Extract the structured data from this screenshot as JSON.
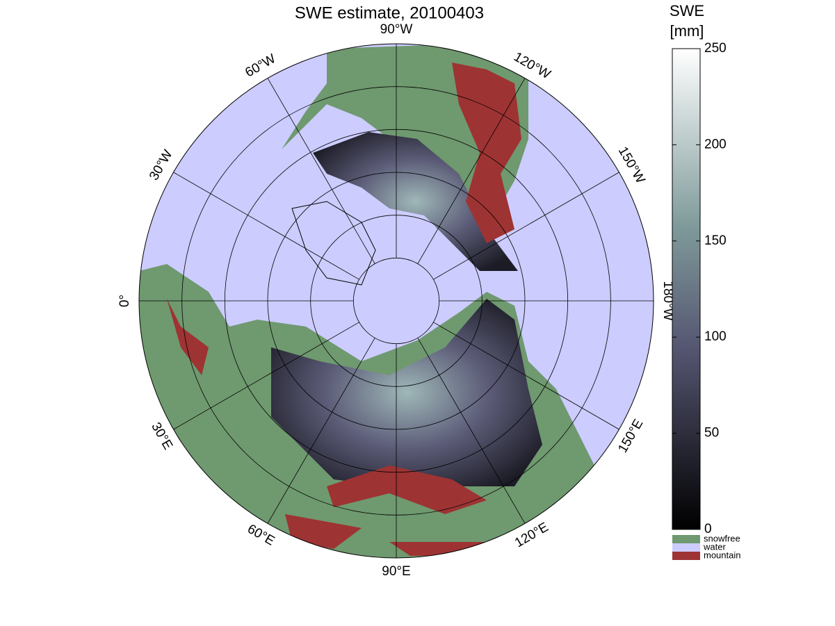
{
  "chart_data": {
    "type": "polar-map",
    "title": "SWE estimate, 20100403",
    "meridians": [
      {
        "value": -90,
        "label": "90°W"
      },
      {
        "value": -120,
        "label": "120°W"
      },
      {
        "value": -150,
        "label": "150°W"
      },
      {
        "value": -180,
        "label": "180°W"
      },
      {
        "value": 150,
        "label": "150°E"
      },
      {
        "value": 120,
        "label": "120°E"
      },
      {
        "value": 90,
        "label": "90°E"
      },
      {
        "value": 60,
        "label": "60°E"
      },
      {
        "value": 30,
        "label": "30°E"
      },
      {
        "value": 0,
        "label": "0°"
      },
      {
        "value": -30,
        "label": "30°W"
      },
      {
        "value": -60,
        "label": "60°W"
      }
    ],
    "parallels": [
      80,
      70,
      60,
      50,
      40
    ],
    "latlim": [
      30,
      90
    ],
    "colorbar": {
      "title": [
        "SWE",
        "[mm]"
      ],
      "lim": [
        0,
        250
      ],
      "ticks": [
        0,
        50,
        100,
        150,
        200,
        250
      ]
    },
    "legend": [
      {
        "name": "snowfree",
        "color": "#6f996f"
      },
      {
        "name": "water",
        "color": "#ccccff"
      },
      {
        "name": "mountain",
        "color": "#9e3333"
      }
    ]
  }
}
